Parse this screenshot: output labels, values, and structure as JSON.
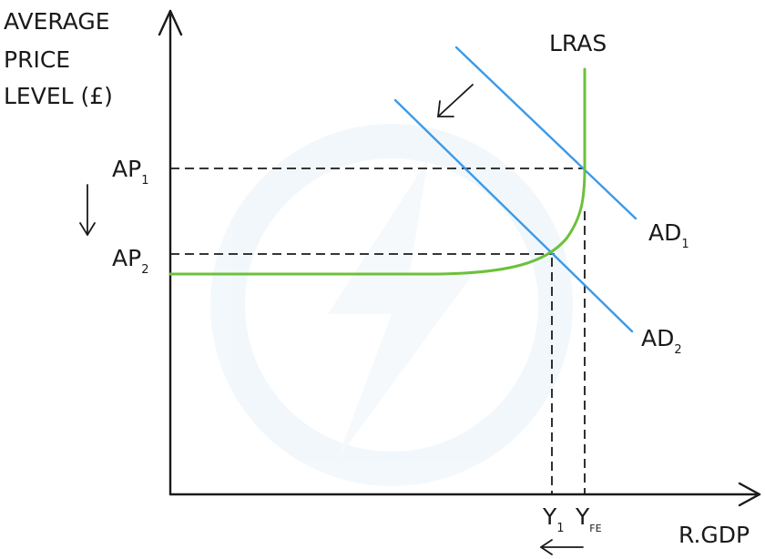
{
  "y_axis_title": [
    "AVERAGE",
    "PRICE",
    "LEVEL (£)"
  ],
  "x_axis_title": "R.GDP",
  "lras_label": "LRAS",
  "ad1": {
    "main": "AD",
    "sub": "1"
  },
  "ad2": {
    "main": "AD",
    "sub": "2"
  },
  "ap1": {
    "main": "AP",
    "sub": "1"
  },
  "ap2": {
    "main": "AP",
    "sub": "2"
  },
  "y1": {
    "main": "Y",
    "sub": "1"
  },
  "yfe": {
    "main": "Y",
    "sub": "FE"
  },
  "colors": {
    "ad_lines": "#3b9ae8",
    "lras_curve": "#6cc13a",
    "axes": "#1a1a1a",
    "watermark": "#e9f2fa"
  },
  "icons": {
    "shift_arrow": "arrow-down-left-icon",
    "price_fall_arrow": "arrow-down-icon",
    "output_fall_arrow": "arrow-left-icon",
    "watermark": "lightning-logo-watermark"
  }
}
